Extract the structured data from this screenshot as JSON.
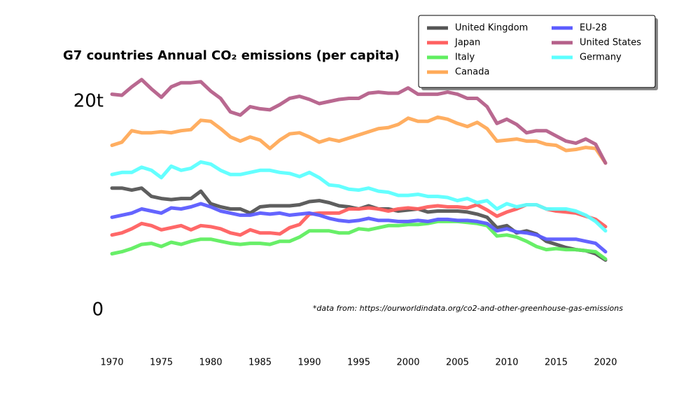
{
  "chart_data": {
    "type": "line",
    "title": "G7 countries Annual CO₂ emissions (per capita)",
    "annotation": "*data from: https://ourworldindata.org/co2-and-other-greenhouse-gas-emissions",
    "x": [
      1970,
      1971,
      1972,
      1973,
      1974,
      1975,
      1976,
      1977,
      1978,
      1979,
      1980,
      1981,
      1982,
      1983,
      1984,
      1985,
      1986,
      1987,
      1988,
      1989,
      1990,
      1991,
      1992,
      1993,
      1994,
      1995,
      1996,
      1997,
      1998,
      1999,
      2000,
      2001,
      2002,
      2003,
      2004,
      2005,
      2006,
      2007,
      2008,
      2009,
      2010,
      2011,
      2012,
      2013,
      2014,
      2015,
      2016,
      2017,
      2018,
      2019,
      2020
    ],
    "xlim": [
      1970,
      2020
    ],
    "xticks": [
      1970,
      1975,
      1980,
      1985,
      1990,
      1995,
      2000,
      2005,
      2010,
      2015,
      2020
    ],
    "ylim": [
      0,
      23
    ],
    "yticks": [
      0,
      {
        "value": 20,
        "label": "20t"
      }
    ],
    "legend": "upper right",
    "series": [
      {
        "name": "United Kingdom",
        "color": "#555555",
        "values": [
          11.7,
          11.7,
          11.5,
          11.7,
          10.9,
          10.7,
          10.6,
          10.7,
          10.7,
          11.4,
          10.2,
          9.9,
          9.7,
          9.7,
          9.3,
          9.9,
          10.0,
          10.0,
          10.0,
          10.1,
          10.4,
          10.5,
          10.3,
          10.0,
          9.9,
          9.7,
          10.0,
          9.7,
          9.7,
          9.5,
          9.6,
          9.7,
          9.4,
          9.5,
          9.5,
          9.5,
          9.4,
          9.2,
          8.9,
          7.9,
          8.1,
          7.4,
          7.6,
          7.3,
          6.6,
          6.3,
          6.0,
          5.8,
          5.7,
          5.4,
          4.8
        ]
      },
      {
        "name": "Japan",
        "color": "#ff6060",
        "values": [
          7.2,
          7.4,
          7.8,
          8.3,
          8.1,
          7.7,
          7.9,
          8.1,
          7.7,
          8.1,
          8.0,
          7.8,
          7.4,
          7.2,
          7.7,
          7.4,
          7.4,
          7.3,
          7.9,
          8.2,
          9.2,
          9.3,
          9.3,
          9.3,
          9.7,
          9.7,
          9.8,
          9.7,
          9.5,
          9.7,
          9.8,
          9.7,
          9.9,
          10.0,
          9.9,
          9.9,
          9.8,
          10.1,
          9.6,
          9.0,
          9.4,
          9.7,
          10.1,
          10.1,
          9.7,
          9.5,
          9.4,
          9.3,
          9.0,
          8.7,
          8.0
        ]
      },
      {
        "name": "Italy",
        "color": "#60ee60",
        "values": [
          5.4,
          5.6,
          5.9,
          6.3,
          6.4,
          6.1,
          6.5,
          6.3,
          6.6,
          6.8,
          6.8,
          6.6,
          6.4,
          6.3,
          6.4,
          6.4,
          6.3,
          6.6,
          6.6,
          7.0,
          7.6,
          7.6,
          7.6,
          7.4,
          7.4,
          7.8,
          7.7,
          7.9,
          8.1,
          8.1,
          8.2,
          8.2,
          8.3,
          8.5,
          8.5,
          8.5,
          8.4,
          8.3,
          8.1,
          7.1,
          7.2,
          7.0,
          6.6,
          6.1,
          5.8,
          5.9,
          5.8,
          5.8,
          5.7,
          5.6,
          4.9
        ]
      },
      {
        "name": "Canada",
        "color": "#ffaa58",
        "values": [
          15.8,
          16.1,
          17.2,
          17.0,
          17.0,
          17.1,
          17.0,
          17.2,
          17.3,
          18.2,
          18.1,
          17.4,
          16.6,
          16.2,
          16.6,
          16.3,
          15.5,
          16.3,
          16.9,
          17.0,
          16.6,
          16.1,
          16.4,
          16.2,
          16.5,
          16.8,
          17.1,
          17.4,
          17.5,
          17.8,
          18.4,
          18.1,
          18.1,
          18.5,
          18.3,
          17.9,
          17.6,
          18.0,
          17.4,
          16.2,
          16.3,
          16.4,
          16.2,
          16.2,
          15.9,
          15.8,
          15.3,
          15.4,
          15.6,
          15.5,
          14.1
        ]
      },
      {
        "name": "EU-28",
        "color": "#5c5cff",
        "values": [
          8.9,
          9.1,
          9.3,
          9.7,
          9.5,
          9.3,
          9.8,
          9.7,
          9.9,
          10.2,
          9.9,
          9.5,
          9.3,
          9.1,
          9.1,
          9.3,
          9.2,
          9.3,
          9.1,
          9.2,
          9.3,
          9.1,
          8.8,
          8.6,
          8.5,
          8.6,
          8.8,
          8.6,
          8.6,
          8.5,
          8.5,
          8.6,
          8.5,
          8.7,
          8.7,
          8.6,
          8.6,
          8.5,
          8.3,
          7.6,
          7.8,
          7.5,
          7.4,
          7.2,
          6.8,
          6.8,
          6.8,
          6.8,
          6.6,
          6.4,
          5.6
        ]
      },
      {
        "name": "United States",
        "color": "#b5608a",
        "values": [
          20.7,
          20.6,
          21.4,
          22.1,
          21.2,
          20.4,
          21.4,
          21.8,
          21.8,
          21.9,
          21.0,
          20.3,
          19.0,
          18.7,
          19.5,
          19.3,
          19.2,
          19.7,
          20.3,
          20.5,
          20.2,
          19.8,
          20.0,
          20.2,
          20.3,
          20.3,
          20.8,
          20.9,
          20.8,
          20.8,
          21.3,
          20.7,
          20.7,
          20.7,
          20.9,
          20.7,
          20.3,
          20.3,
          19.5,
          17.9,
          18.3,
          17.8,
          17.0,
          17.2,
          17.2,
          16.7,
          16.2,
          16.0,
          16.4,
          15.9,
          14.1
        ]
      },
      {
        "name": "Germany",
        "color": "#5cffff",
        "values": [
          13.0,
          13.2,
          13.2,
          13.7,
          13.4,
          12.7,
          13.8,
          13.4,
          13.6,
          14.2,
          14.0,
          13.4,
          13.0,
          13.0,
          13.2,
          13.4,
          13.4,
          13.2,
          13.1,
          12.8,
          13.2,
          12.7,
          12.0,
          11.9,
          11.6,
          11.5,
          11.7,
          11.4,
          11.3,
          11.0,
          11.0,
          11.1,
          10.9,
          10.9,
          10.8,
          10.5,
          10.7,
          10.3,
          10.5,
          9.7,
          10.2,
          9.9,
          10.1,
          10.1,
          9.7,
          9.7,
          9.7,
          9.5,
          9.1,
          8.5,
          7.6
        ]
      }
    ]
  }
}
